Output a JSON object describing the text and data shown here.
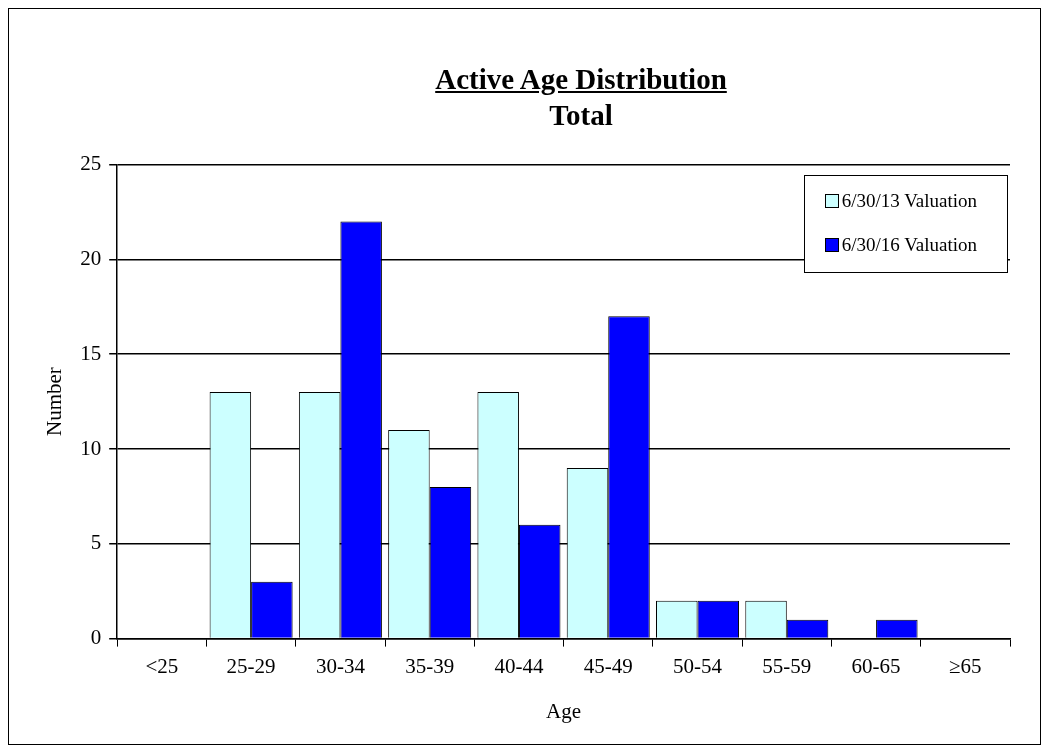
{
  "chart_data": {
    "type": "bar",
    "title": "Active Age Distribution",
    "subtitle": "Total",
    "xlabel": "Age",
    "ylabel": "Number",
    "categories": [
      "<25",
      "25-29",
      "30-34",
      "35-39",
      "40-44",
      "45-49",
      "50-54",
      "55-59",
      "60-65",
      "≥65"
    ],
    "series": [
      {
        "name": "6/30/13 Valuation",
        "color": "#ccffff",
        "values": [
          0,
          13,
          13,
          11,
          13,
          9,
          2,
          2,
          0,
          0
        ]
      },
      {
        "name": "6/30/16 Valuation",
        "color": "#0000ff",
        "values": [
          0,
          3,
          22,
          8,
          6,
          17,
          2,
          1,
          1,
          0
        ]
      }
    ],
    "ylim": [
      0,
      25
    ],
    "yticks": [
      0,
      5,
      10,
      15,
      20,
      25
    ],
    "grid": "y",
    "legend": "top right"
  }
}
